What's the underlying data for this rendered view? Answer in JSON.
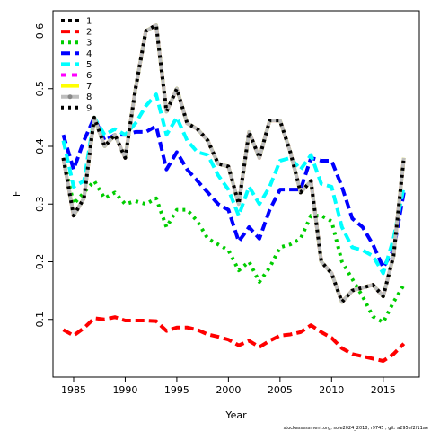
{
  "chart_data": {
    "type": "line",
    "xlabel": "Year",
    "ylabel": "F",
    "xlim": [
      1983,
      2018.5
    ],
    "ylim": [
      0.0,
      0.635
    ],
    "xticks": [
      1985,
      1990,
      1995,
      2000,
      2005,
      2010,
      2015
    ],
    "yticks": [
      0.1,
      0.2,
      0.3,
      0.4,
      0.5,
      0.6
    ],
    "legend_position": "top-left",
    "x": [
      1984,
      1985,
      1986,
      1987,
      1988,
      1989,
      1990,
      1991,
      1992,
      1993,
      1994,
      1995,
      1996,
      1997,
      1998,
      1999,
      2000,
      2001,
      2002,
      2003,
      2004,
      2005,
      2006,
      2007,
      2008,
      2009,
      2010,
      2011,
      2012,
      2013,
      2014,
      2015,
      2016,
      2017
    ],
    "series": [
      {
        "name": "1",
        "color": "#000000",
        "dash": "4,4",
        "values": [
          0.38,
          0.28,
          0.31,
          0.45,
          0.4,
          0.42,
          0.38,
          0.5,
          0.6,
          0.61,
          0.46,
          0.5,
          0.44,
          0.43,
          0.41,
          0.37,
          0.365,
          0.3,
          0.425,
          0.38,
          0.445,
          0.445,
          0.39,
          0.32,
          0.34,
          0.2,
          0.18,
          0.13,
          0.15,
          0.155,
          0.16,
          0.14,
          0.21,
          0.38
        ]
      },
      {
        "name": "2",
        "color": "#ff0000",
        "dash": "10,5",
        "values": [
          0.082,
          0.072,
          0.085,
          0.102,
          0.1,
          0.104,
          0.098,
          0.098,
          0.098,
          0.097,
          0.08,
          0.086,
          0.086,
          0.082,
          0.074,
          0.07,
          0.065,
          0.055,
          0.063,
          0.052,
          0.063,
          0.072,
          0.074,
          0.078,
          0.09,
          0.078,
          0.068,
          0.05,
          0.04,
          0.036,
          0.032,
          0.028,
          0.04,
          0.058
        ]
      },
      {
        "name": "3",
        "color": "#00cd00",
        "dash": "3,5",
        "values": [
          0.38,
          0.3,
          0.32,
          0.34,
          0.31,
          0.32,
          0.3,
          0.305,
          0.3,
          0.31,
          0.26,
          0.29,
          0.29,
          0.27,
          0.24,
          0.23,
          0.22,
          0.185,
          0.2,
          0.165,
          0.19,
          0.225,
          0.23,
          0.24,
          0.28,
          0.28,
          0.27,
          0.2,
          0.17,
          0.14,
          0.105,
          0.095,
          0.13,
          0.16
        ]
      },
      {
        "name": "4",
        "color": "#0000ff",
        "dash": "10,5",
        "values": [
          0.42,
          0.36,
          0.41,
          0.45,
          0.41,
          0.42,
          0.42,
          0.425,
          0.425,
          0.435,
          0.36,
          0.39,
          0.36,
          0.34,
          0.32,
          0.3,
          0.29,
          0.235,
          0.26,
          0.24,
          0.29,
          0.325,
          0.325,
          0.325,
          0.38,
          0.375,
          0.375,
          0.33,
          0.275,
          0.26,
          0.23,
          0.19,
          0.22,
          0.32
        ]
      },
      {
        "name": "5",
        "color": "#00ffff",
        "dash": "10,5",
        "values": [
          0.41,
          0.33,
          0.34,
          0.45,
          0.42,
          0.43,
          0.42,
          0.44,
          0.47,
          0.49,
          0.42,
          0.45,
          0.41,
          0.39,
          0.385,
          0.35,
          0.325,
          0.28,
          0.33,
          0.3,
          0.33,
          0.375,
          0.38,
          0.36,
          0.385,
          0.335,
          0.33,
          0.26,
          0.225,
          0.22,
          0.21,
          0.18,
          0.24,
          0.33
        ]
      },
      {
        "name": "6",
        "color": "#ff00ff",
        "dash": "6,6",
        "values": [
          0.38,
          0.28,
          0.31,
          0.45,
          0.4,
          0.42,
          0.38,
          0.5,
          0.6,
          0.61,
          0.46,
          0.5,
          0.44,
          0.43,
          0.41,
          0.37,
          0.365,
          0.3,
          0.425,
          0.38,
          0.445,
          0.445,
          0.39,
          0.32,
          0.34,
          0.2,
          0.18,
          0.13,
          0.15,
          0.155,
          0.16,
          0.14,
          0.21,
          0.38
        ]
      },
      {
        "name": "7",
        "color": "#ffff00",
        "dash": "",
        "values": [
          0.38,
          0.28,
          0.31,
          0.45,
          0.4,
          0.42,
          0.38,
          0.5,
          0.6,
          0.61,
          0.46,
          0.5,
          0.44,
          0.43,
          0.41,
          0.37,
          0.365,
          0.3,
          0.425,
          0.38,
          0.445,
          0.445,
          0.39,
          0.32,
          0.34,
          0.2,
          0.18,
          0.13,
          0.15,
          0.155,
          0.16,
          0.14,
          0.21,
          0.38
        ]
      },
      {
        "name": "8",
        "color": "#bebebe",
        "dash": "",
        "values": [
          0.38,
          0.28,
          0.31,
          0.45,
          0.4,
          0.42,
          0.38,
          0.5,
          0.6,
          0.61,
          0.46,
          0.5,
          0.44,
          0.43,
          0.41,
          0.37,
          0.365,
          0.3,
          0.425,
          0.38,
          0.445,
          0.445,
          0.39,
          0.32,
          0.34,
          0.2,
          0.18,
          0.13,
          0.15,
          0.155,
          0.16,
          0.14,
          0.21,
          0.38
        ]
      },
      {
        "name": "9",
        "color": "#000000",
        "dash": "3,5",
        "values": [
          0.38,
          0.28,
          0.31,
          0.45,
          0.4,
          0.42,
          0.38,
          0.5,
          0.6,
          0.61,
          0.46,
          0.5,
          0.44,
          0.43,
          0.41,
          0.37,
          0.365,
          0.3,
          0.425,
          0.38,
          0.445,
          0.445,
          0.39,
          0.32,
          0.34,
          0.2,
          0.18,
          0.13,
          0.15,
          0.155,
          0.16,
          0.14,
          0.21,
          0.38
        ]
      }
    ],
    "footer": "stockassessment.org, sole2024_2018, r9745 ; git: a295ef2f11ae"
  }
}
